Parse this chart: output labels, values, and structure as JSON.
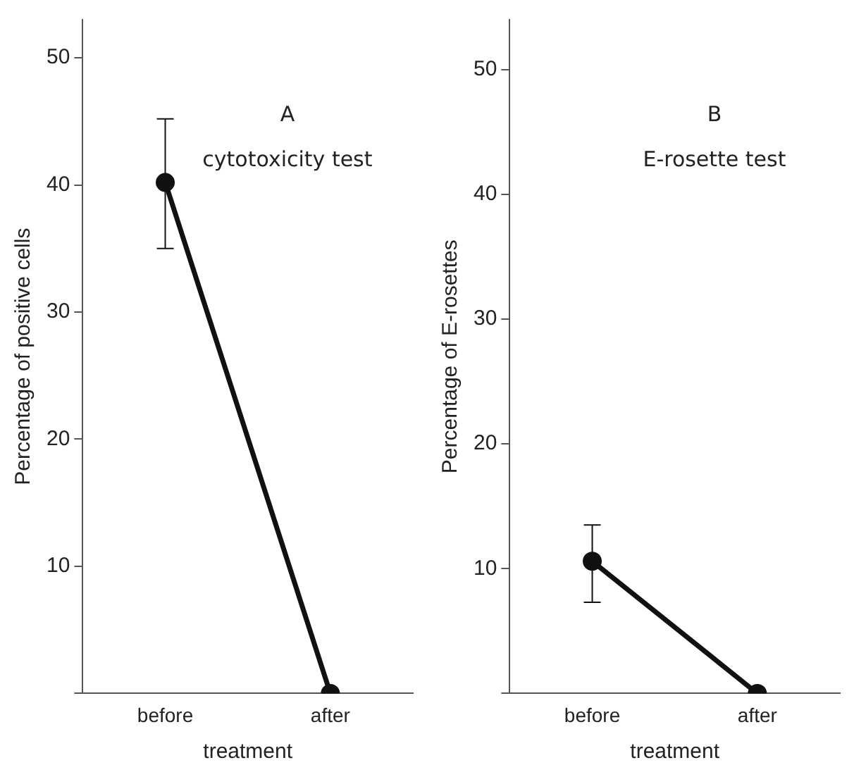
{
  "chart_data": [
    {
      "type": "line",
      "title": "A",
      "subtitle": "cytotoxicity test",
      "xlabel": "treatment",
      "ylabel": "Percentage of positive cells",
      "categories": [
        "before",
        "after"
      ],
      "series": [
        {
          "color": "#111111",
          "values": [
            40.2,
            0
          ],
          "errors": [
            [
              35,
              45.2
            ],
            null
          ]
        }
      ],
      "ylim": [
        0,
        53
      ],
      "yticks": [
        {
          "value": 0,
          "label": null
        },
        10,
        20,
        30,
        40,
        50
      ],
      "grid": false,
      "legend": false,
      "marker": "circle",
      "line_style": "solid"
    },
    {
      "type": "line",
      "title": "B",
      "subtitle": "E-rosette test",
      "xlabel": "treatment",
      "ylabel": "Percentage of E-rosettes",
      "categories": [
        "before",
        "after"
      ],
      "series": [
        {
          "color": "#111111",
          "values": [
            10.6,
            0
          ],
          "errors": [
            [
              7.3,
              13.5
            ],
            null
          ]
        }
      ],
      "ylim": [
        0,
        54
      ],
      "yticks": [
        {
          "value": 0,
          "label": null
        },
        10,
        20,
        30,
        40,
        50
      ],
      "grid": false,
      "legend": false,
      "marker": "circle",
      "line_style": "solid"
    }
  ]
}
